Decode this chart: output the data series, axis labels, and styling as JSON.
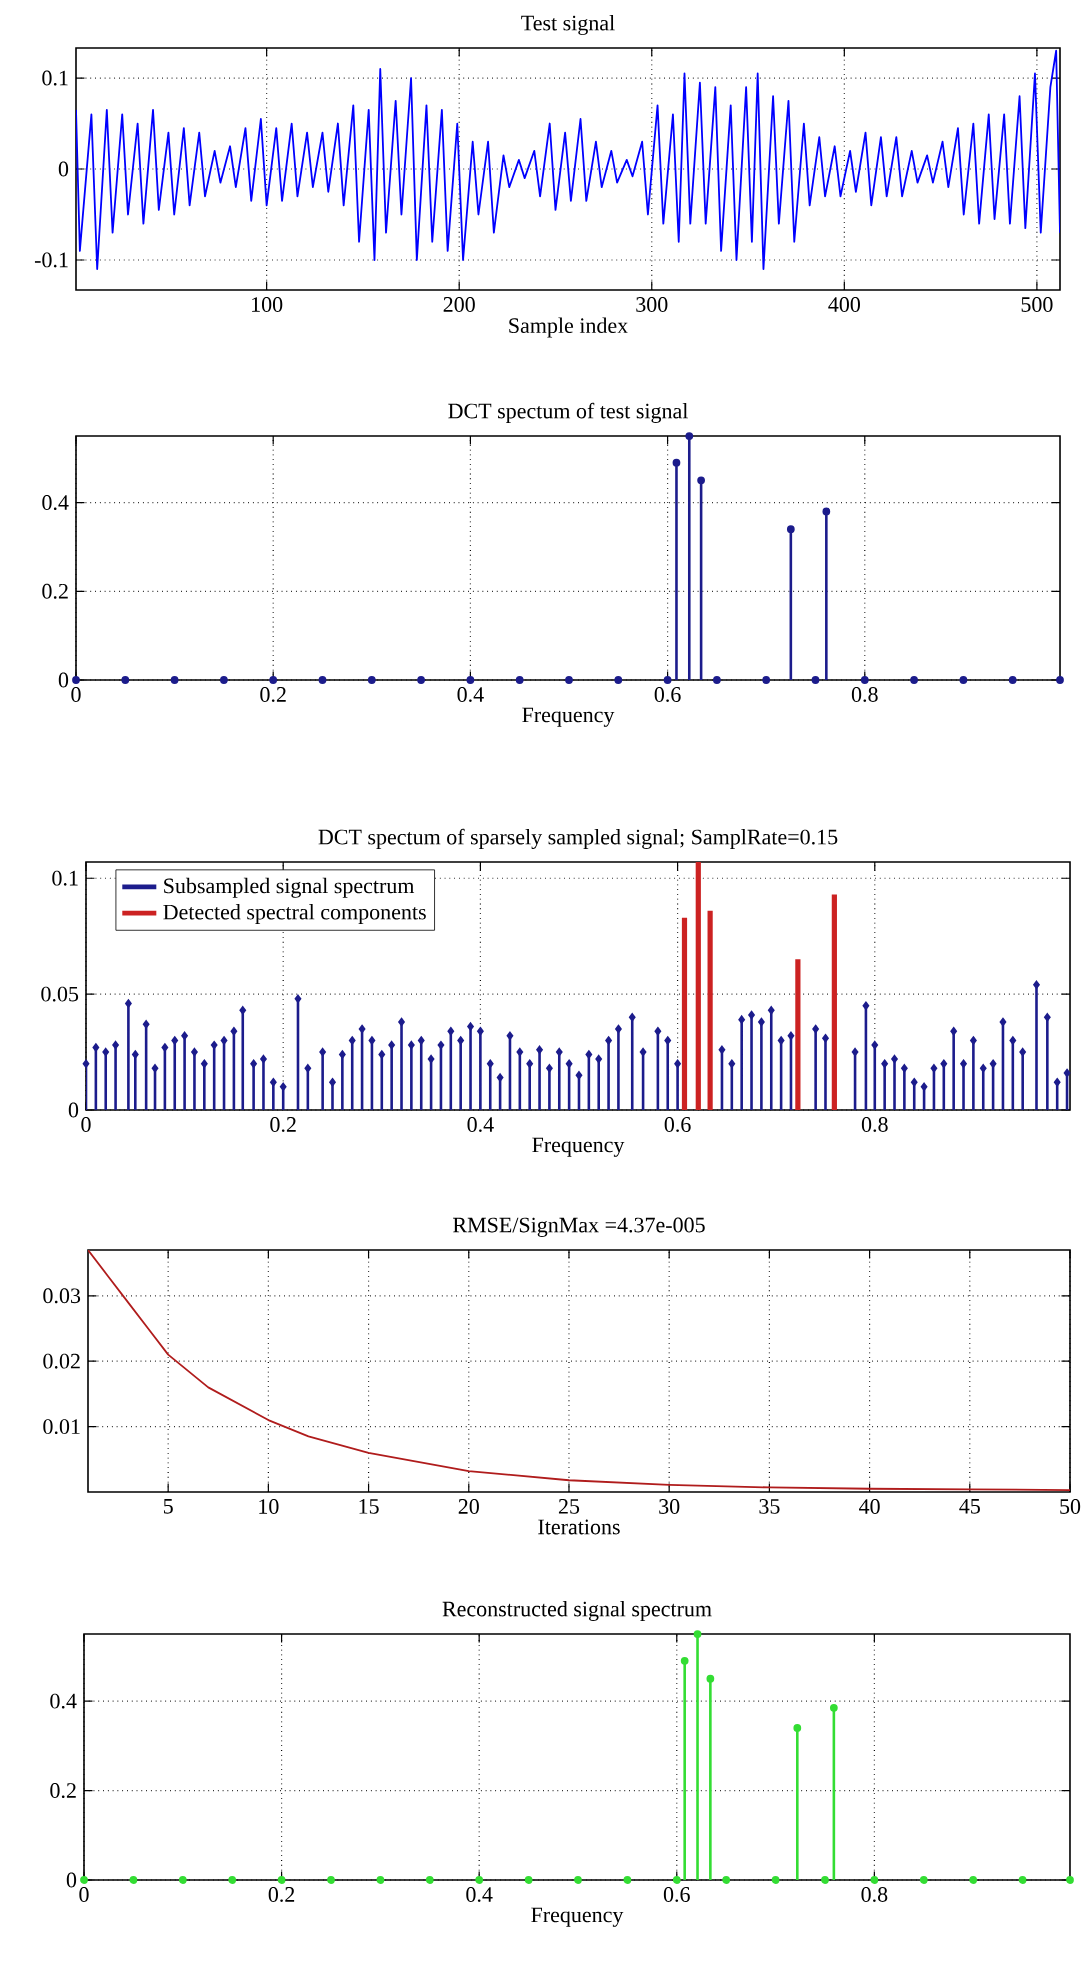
{
  "chart_data": [
    {
      "type": "line",
      "title": "Test signal",
      "xlabel": "Sample index",
      "xlim": [
        1,
        512
      ],
      "ylim": [
        -0.133,
        0.133
      ],
      "xticks": [
        100,
        200,
        300,
        400,
        500
      ],
      "yticks": [
        -0.1,
        0,
        0.1
      ],
      "grid": true,
      "series": [
        {
          "color": "#0000ff",
          "x": [
            1,
            3,
            9,
            12,
            17,
            20,
            25,
            28,
            33,
            36,
            41,
            44,
            49,
            52,
            57,
            60,
            65,
            68,
            73,
            76,
            81,
            84,
            89,
            92,
            97,
            100,
            105,
            108,
            113,
            116,
            121,
            124,
            129,
            132,
            137,
            140,
            145,
            148,
            153,
            156,
            159,
            162,
            167,
            170,
            175,
            178,
            183,
            186,
            191,
            194,
            199,
            202,
            207,
            210,
            215,
            218,
            223,
            226,
            231,
            234,
            239,
            242,
            247,
            250,
            255,
            258,
            263,
            266,
            271,
            274,
            279,
            282,
            287,
            290,
            295,
            298,
            303,
            306,
            311,
            314,
            317,
            320,
            325,
            328,
            333,
            336,
            341,
            344,
            349,
            352,
            355,
            358,
            363,
            366,
            371,
            374,
            379,
            382,
            387,
            390,
            395,
            398,
            403,
            406,
            411,
            414,
            419,
            422,
            427,
            430,
            435,
            438,
            443,
            446,
            451,
            454,
            459,
            462,
            467,
            470,
            475,
            478,
            483,
            486,
            491,
            494,
            499,
            502,
            507,
            510,
            512
          ],
          "values": [
            0.065,
            -0.09,
            0.06,
            -0.11,
            0.065,
            -0.07,
            0.06,
            -0.05,
            0.05,
            -0.06,
            0.065,
            -0.045,
            0.04,
            -0.05,
            0.045,
            -0.04,
            0.04,
            -0.03,
            0.02,
            -0.015,
            0.025,
            -0.02,
            0.045,
            -0.035,
            0.055,
            -0.04,
            0.045,
            -0.035,
            0.05,
            -0.03,
            0.04,
            -0.02,
            0.04,
            -0.025,
            0.05,
            -0.04,
            0.07,
            -0.08,
            0.065,
            -0.1,
            0.11,
            -0.07,
            0.075,
            -0.05,
            0.1,
            -0.1,
            0.07,
            -0.08,
            0.065,
            -0.09,
            0.05,
            -0.1,
            0.03,
            -0.05,
            0.03,
            -0.07,
            0.015,
            -0.02,
            0.01,
            -0.01,
            0.02,
            -0.03,
            0.05,
            -0.045,
            0.04,
            -0.035,
            0.055,
            -0.035,
            0.03,
            -0.02,
            0.02,
            -0.015,
            0.01,
            -0.008,
            0.03,
            -0.05,
            0.07,
            -0.06,
            0.06,
            -0.08,
            0.105,
            -0.06,
            0.095,
            -0.06,
            0.09,
            -0.09,
            0.07,
            -0.1,
            0.09,
            -0.08,
            0.105,
            -0.11,
            0.08,
            -0.06,
            0.075,
            -0.08,
            0.05,
            -0.04,
            0.035,
            -0.03,
            0.025,
            -0.03,
            0.02,
            -0.025,
            0.04,
            -0.04,
            0.035,
            -0.03,
            0.035,
            -0.03,
            0.02,
            -0.015,
            0.015,
            -0.015,
            0.03,
            -0.02,
            0.045,
            -0.05,
            0.05,
            -0.06,
            0.06,
            -0.055,
            0.06,
            -0.06,
            0.08,
            -0.065,
            0.105,
            -0.07,
            0.09,
            0.13,
            -0.07
          ]
        }
      ]
    },
    {
      "type": "lollipop",
      "title": "DCT spectum of test signal",
      "xlabel": "Frequency",
      "xlim": [
        0,
        0.998
      ],
      "ylim": [
        0,
        0.55
      ],
      "xticks": [
        0,
        0.2,
        0.4,
        0.6,
        0.8
      ],
      "yticks": [
        0,
        0.2,
        0.4
      ],
      "grid": true,
      "marker": "circle",
      "series": [
        {
          "color": "#1c1c8c",
          "x": [
            0,
            0.05,
            0.1,
            0.15,
            0.2,
            0.25,
            0.3,
            0.35,
            0.4,
            0.45,
            0.5,
            0.55,
            0.6,
            0.609,
            0.622,
            0.634,
            0.65,
            0.7,
            0.725,
            0.75,
            0.761,
            0.8,
            0.85,
            0.9,
            0.95,
            0.998
          ],
          "values": [
            0,
            0,
            0,
            0,
            0,
            0,
            0,
            0,
            0,
            0,
            0,
            0,
            0,
            0.49,
            0.55,
            0.45,
            0,
            0,
            0.34,
            0,
            0.38,
            0,
            0,
            0,
            0,
            0
          ]
        }
      ]
    },
    {
      "type": "lollipop",
      "title": "DCT spectum of sparsely sampled signal; SamplRate=0.15",
      "xlabel": "Frequency",
      "xlim": [
        0,
        0.998
      ],
      "ylim": [
        0,
        0.107
      ],
      "xticks": [
        0,
        0.2,
        0.4,
        0.6,
        0.8
      ],
      "yticks": [
        0,
        0.05,
        0.1
      ],
      "grid": true,
      "legend": "top left",
      "series": [
        {
          "name": "Subsampled signal spectrum",
          "color": "#1c1c8c",
          "marker": "diamond",
          "x": [
            0,
            0.01,
            0.02,
            0.03,
            0.043,
            0.05,
            0.061,
            0.07,
            0.08,
            0.09,
            0.1,
            0.11,
            0.12,
            0.13,
            0.14,
            0.15,
            0.159,
            0.17,
            0.18,
            0.19,
            0.2,
            0.215,
            0.225,
            0.24,
            0.25,
            0.26,
            0.27,
            0.28,
            0.29,
            0.3,
            0.31,
            0.32,
            0.33,
            0.34,
            0.35,
            0.36,
            0.37,
            0.38,
            0.39,
            0.4,
            0.41,
            0.42,
            0.43,
            0.44,
            0.45,
            0.46,
            0.47,
            0.48,
            0.49,
            0.5,
            0.51,
            0.52,
            0.53,
            0.54,
            0.554,
            0.565,
            0.58,
            0.59,
            0.6,
            0.645,
            0.655,
            0.665,
            0.675,
            0.685,
            0.695,
            0.705,
            0.715,
            0.74,
            0.75,
            0.78,
            0.791,
            0.8,
            0.81,
            0.82,
            0.83,
            0.84,
            0.85,
            0.86,
            0.87,
            0.88,
            0.89,
            0.9,
            0.91,
            0.92,
            0.93,
            0.94,
            0.95,
            0.964,
            0.975,
            0.985,
            0.995
          ],
          "values": [
            0.02,
            0.027,
            0.025,
            0.028,
            0.046,
            0.024,
            0.037,
            0.018,
            0.027,
            0.03,
            0.032,
            0.025,
            0.02,
            0.028,
            0.03,
            0.034,
            0.043,
            0.02,
            0.022,
            0.012,
            0.01,
            0.048,
            0.018,
            0.025,
            0.012,
            0.024,
            0.03,
            0.035,
            0.03,
            0.024,
            0.028,
            0.038,
            0.028,
            0.03,
            0.022,
            0.028,
            0.034,
            0.03,
            0.036,
            0.034,
            0.02,
            0.014,
            0.032,
            0.025,
            0.02,
            0.026,
            0.018,
            0.025,
            0.02,
            0.015,
            0.024,
            0.022,
            0.03,
            0.035,
            0.04,
            0.025,
            0.034,
            0.03,
            0.02,
            0.026,
            0.02,
            0.039,
            0.041,
            0.038,
            0.043,
            0.03,
            0.032,
            0.035,
            0.031,
            0.025,
            0.045,
            0.028,
            0.02,
            0.022,
            0.018,
            0.012,
            0.01,
            0.018,
            0.02,
            0.034,
            0.02,
            0.03,
            0.018,
            0.02,
            0.038,
            0.03,
            0.025,
            0.054,
            0.04,
            0.012,
            0.016
          ]
        },
        {
          "name": "Detected spectral components",
          "type": "bar",
          "color": "#cc2222",
          "marker": "none",
          "x": [
            0.607,
            0.621,
            0.633,
            0.722,
            0.759
          ],
          "values": [
            0.083,
            0.107,
            0.086,
            0.065,
            0.093
          ]
        }
      ]
    },
    {
      "type": "line",
      "title": "RMSE/SignMax =4.37e-005",
      "xlabel": "Iterations",
      "xlim": [
        1,
        50
      ],
      "ylim": [
        0,
        0.037
      ],
      "xticks": [
        5,
        10,
        15,
        20,
        25,
        30,
        35,
        40,
        45,
        50
      ],
      "yticks": [
        0.01,
        0.02,
        0.03
      ],
      "grid": true,
      "series": [
        {
          "color": "#b01c1c",
          "x": [
            1,
            2,
            3,
            4,
            5,
            7,
            10,
            12,
            15,
            20,
            25,
            30,
            35,
            40,
            45,
            50
          ],
          "values": [
            0.037,
            0.033,
            0.029,
            0.025,
            0.021,
            0.016,
            0.011,
            0.0085,
            0.006,
            0.0032,
            0.0018,
            0.0011,
            0.0007,
            0.0005,
            0.0004,
            0.0003
          ]
        }
      ]
    },
    {
      "type": "lollipop",
      "title": "Reconstructed signal spectrum",
      "xlabel": "Frequency",
      "xlim": [
        0,
        0.998
      ],
      "ylim": [
        0,
        0.55
      ],
      "xticks": [
        0,
        0.2,
        0.4,
        0.6,
        0.8
      ],
      "yticks": [
        0,
        0.2,
        0.4
      ],
      "grid": true,
      "marker": "circle",
      "series": [
        {
          "color": "#33dd33",
          "x": [
            0,
            0.05,
            0.1,
            0.15,
            0.2,
            0.25,
            0.3,
            0.35,
            0.4,
            0.45,
            0.5,
            0.55,
            0.6,
            0.608,
            0.621,
            0.634,
            0.65,
            0.7,
            0.722,
            0.75,
            0.759,
            0.8,
            0.85,
            0.9,
            0.95,
            0.998
          ],
          "values": [
            0,
            0,
            0,
            0,
            0,
            0,
            0,
            0,
            0,
            0,
            0,
            0,
            0,
            0.49,
            0.55,
            0.45,
            0,
            0,
            0.34,
            0,
            0.385,
            0,
            0,
            0,
            0,
            0
          ]
        }
      ]
    }
  ]
}
